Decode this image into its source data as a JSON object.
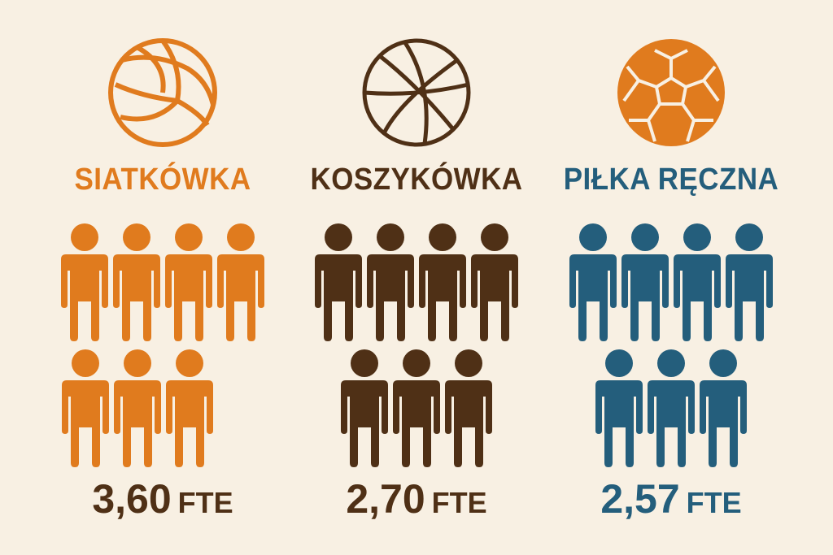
{
  "chart_data": {
    "type": "pictogram",
    "unit": "FTE",
    "categories": [
      "SIATKÓWKA",
      "KOSZYKÓWKA",
      "PIŁKA RĘCZNA"
    ],
    "values": [
      "3,60",
      "2,70",
      "2,57"
    ],
    "icons_per_category": [
      7,
      7,
      7
    ],
    "icons": [
      "volleyball-icon",
      "basketball-icon",
      "handball-icon"
    ],
    "colors": [
      "#E07B1E",
      "#4F3016",
      "#245E7C"
    ],
    "value_color": [
      "#4F3016",
      "#4F3016",
      "#245E7C"
    ]
  }
}
